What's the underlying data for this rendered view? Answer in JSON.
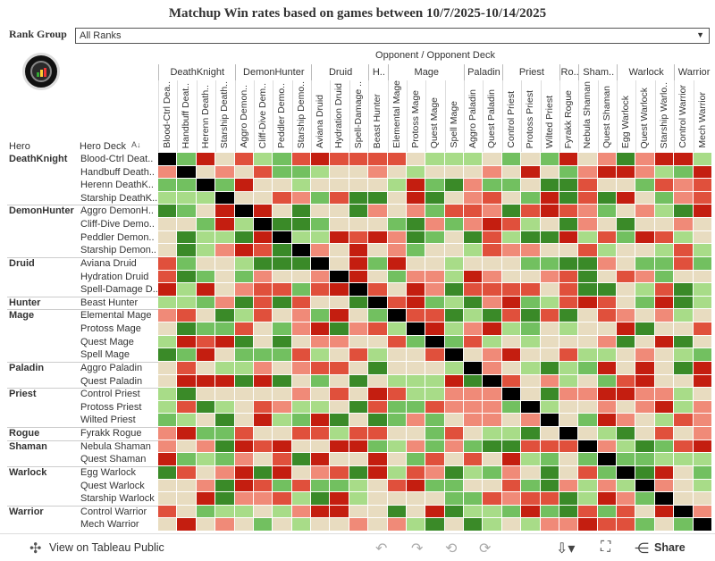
{
  "title": "Matchup Win rates based on games between 10/7/2025-10/14/2025",
  "filter": {
    "label": "Rank Group",
    "value": "All Ranks"
  },
  "header": {
    "top_label": "Opponent  /  Opponent Deck",
    "hero_col": "Hero",
    "deck_col": "Hero Deck"
  },
  "opponent_groups": [
    {
      "name": "DeathKnight",
      "span": 4
    },
    {
      "name": "DemonHunter",
      "span": 4
    },
    {
      "name": "Druid",
      "span": 3
    },
    {
      "name": "H..",
      "span": 1
    },
    {
      "name": "Mage",
      "span": 4
    },
    {
      "name": "Paladin",
      "span": 2
    },
    {
      "name": "Priest",
      "span": 3
    },
    {
      "name": "Ro..",
      "span": 1
    },
    {
      "name": "Sham..",
      "span": 2
    },
    {
      "name": "Warlock",
      "span": 3
    },
    {
      "name": "Warrior",
      "span": 2
    }
  ],
  "opponent_decks": [
    "Blood-Ctrl Dea..",
    "Handbuff Deat..",
    "Herenn Death..",
    "Starship Death..",
    "Aggro Demon..",
    "Cliff-Dive Dem..",
    "Peddler Demo..",
    "Starship Demo..",
    "Aviana Druid",
    "Hydration Druid",
    "Spell-Damage ..",
    "Beast Hunter",
    "Elemental Mage",
    "Protoss Mage",
    "Quest Mage",
    "Spell Mage",
    "Aggro Paladin",
    "Quest Paladin",
    "Control Priest",
    "Protoss Priest",
    "Wilted Priest",
    "Fyrakk Rogue",
    "Nebula Shaman",
    "Quest Shaman",
    "Egg Warlock",
    "Quest Warlock",
    "Starship Warlo..",
    "Control Warrior",
    "Mech Warrior"
  ],
  "hero_groups": [
    {
      "name": "DeathKnight",
      "decks": [
        "Blood-Ctrl Deat..",
        "Handbuff Death..",
        "Herenn DeathK..",
        "Starship DeathK.."
      ]
    },
    {
      "name": "DemonHunter",
      "decks": [
        "Aggro DemonH..",
        "Cliff-Dive Demo..",
        "Peddler Demon..",
        "Starship Demon.."
      ]
    },
    {
      "name": "Druid",
      "decks": [
        "Aviana Druid",
        "Hydration Druid",
        "Spell-Damage D.."
      ]
    },
    {
      "name": "Hunter",
      "decks": [
        "Beast Hunter"
      ]
    },
    {
      "name": "Mage",
      "decks": [
        "Elemental Mage",
        "Protoss Mage",
        "Quest Mage",
        "Spell Mage"
      ]
    },
    {
      "name": "Paladin",
      "decks": [
        "Aggro Paladin",
        "Quest Paladin"
      ]
    },
    {
      "name": "Priest",
      "decks": [
        "Control Priest",
        "Protoss Priest",
        "Wilted Priest"
      ]
    },
    {
      "name": "Rogue",
      "decks": [
        "Fyrakk Rogue"
      ]
    },
    {
      "name": "Shaman",
      "decks": [
        "Nebula Shaman",
        "Quest Shaman"
      ]
    },
    {
      "name": "Warlock",
      "decks": [
        "Egg Warlock",
        "Quest Warlock",
        "Starship Warlock"
      ]
    },
    {
      "name": "Warrior",
      "decks": [
        "Control Warrior",
        "Mech Warrior"
      ]
    }
  ],
  "colors": {
    "mirror": "#000000",
    "neutral": "#e8dcc0",
    "red_light": "#f08a78",
    "red": "#e0503c",
    "red_dark": "#c41e10",
    "green_light": "#a8dc88",
    "green": "#72c060",
    "green_dark": "#3a8a28"
  },
  "footer": {
    "view_label": "View on Tableau Public",
    "share_label": "Share"
  }
}
